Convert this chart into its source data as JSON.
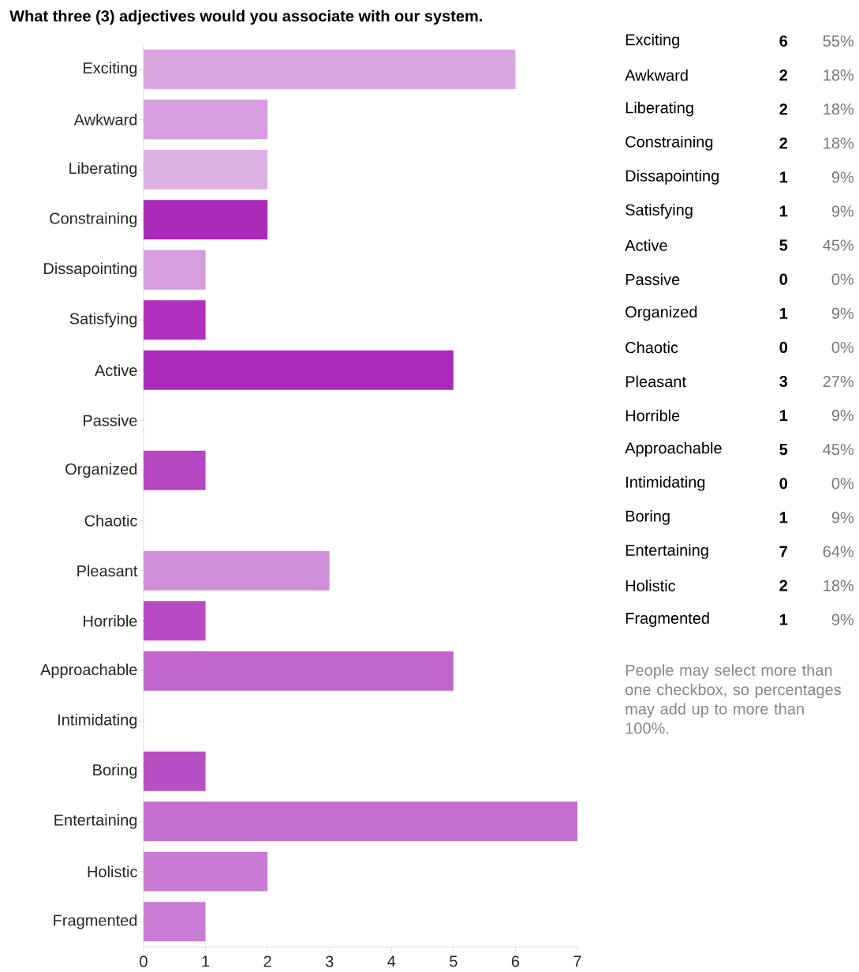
{
  "chart_data": {
    "type": "bar",
    "orientation": "horizontal",
    "title": "What three (3) adjectives would you associate with our system.",
    "categories": [
      "Exciting",
      "Awkward",
      "Liberating",
      "Constraining",
      "Dissapointing",
      "Satisfying",
      "Active",
      "Passive",
      "Organized",
      "Chaotic",
      "Pleasant",
      "Horrible",
      "Approachable",
      "Intimidating",
      "Boring",
      "Entertaining",
      "Holistic",
      "Fragmented"
    ],
    "values": [
      6,
      2,
      2,
      2,
      1,
      1,
      5,
      0,
      1,
      0,
      3,
      1,
      5,
      0,
      1,
      7,
      2,
      1
    ],
    "colors": [
      "#daa6e0",
      "#d69ddf",
      "#dfb0e5",
      "#a92ab8",
      "#d69ddf",
      "#b030bf",
      "#aa2bbb",
      "#b040c0",
      "#b648c4",
      "#b040c0",
      "#d18fd9",
      "#b84bc4",
      "#c266cd",
      "#c066cc",
      "#b84fc5",
      "#c46ecf",
      "#c97bd4",
      "#c97cd3"
    ],
    "xlim": [
      0,
      7
    ],
    "xticks": [
      0,
      1,
      2,
      3,
      4,
      5,
      6,
      7
    ],
    "annotations": [
      "6",
      "55%",
      "2",
      "18%",
      "2",
      "18%",
      "2",
      "18%",
      "1",
      "9%",
      "1",
      "9%",
      "5",
      "45%",
      "0",
      "0%",
      "1",
      "9%",
      "0",
      "0%",
      "3",
      "27%",
      "1",
      "9%",
      "5",
      "45%",
      "0",
      "0%",
      "1",
      "9%",
      "7",
      "64%",
      "2",
      "18%",
      "1",
      "9%",
      "People may select more than one checkbox, so percentages may add up to more than 100%."
    ]
  }
}
